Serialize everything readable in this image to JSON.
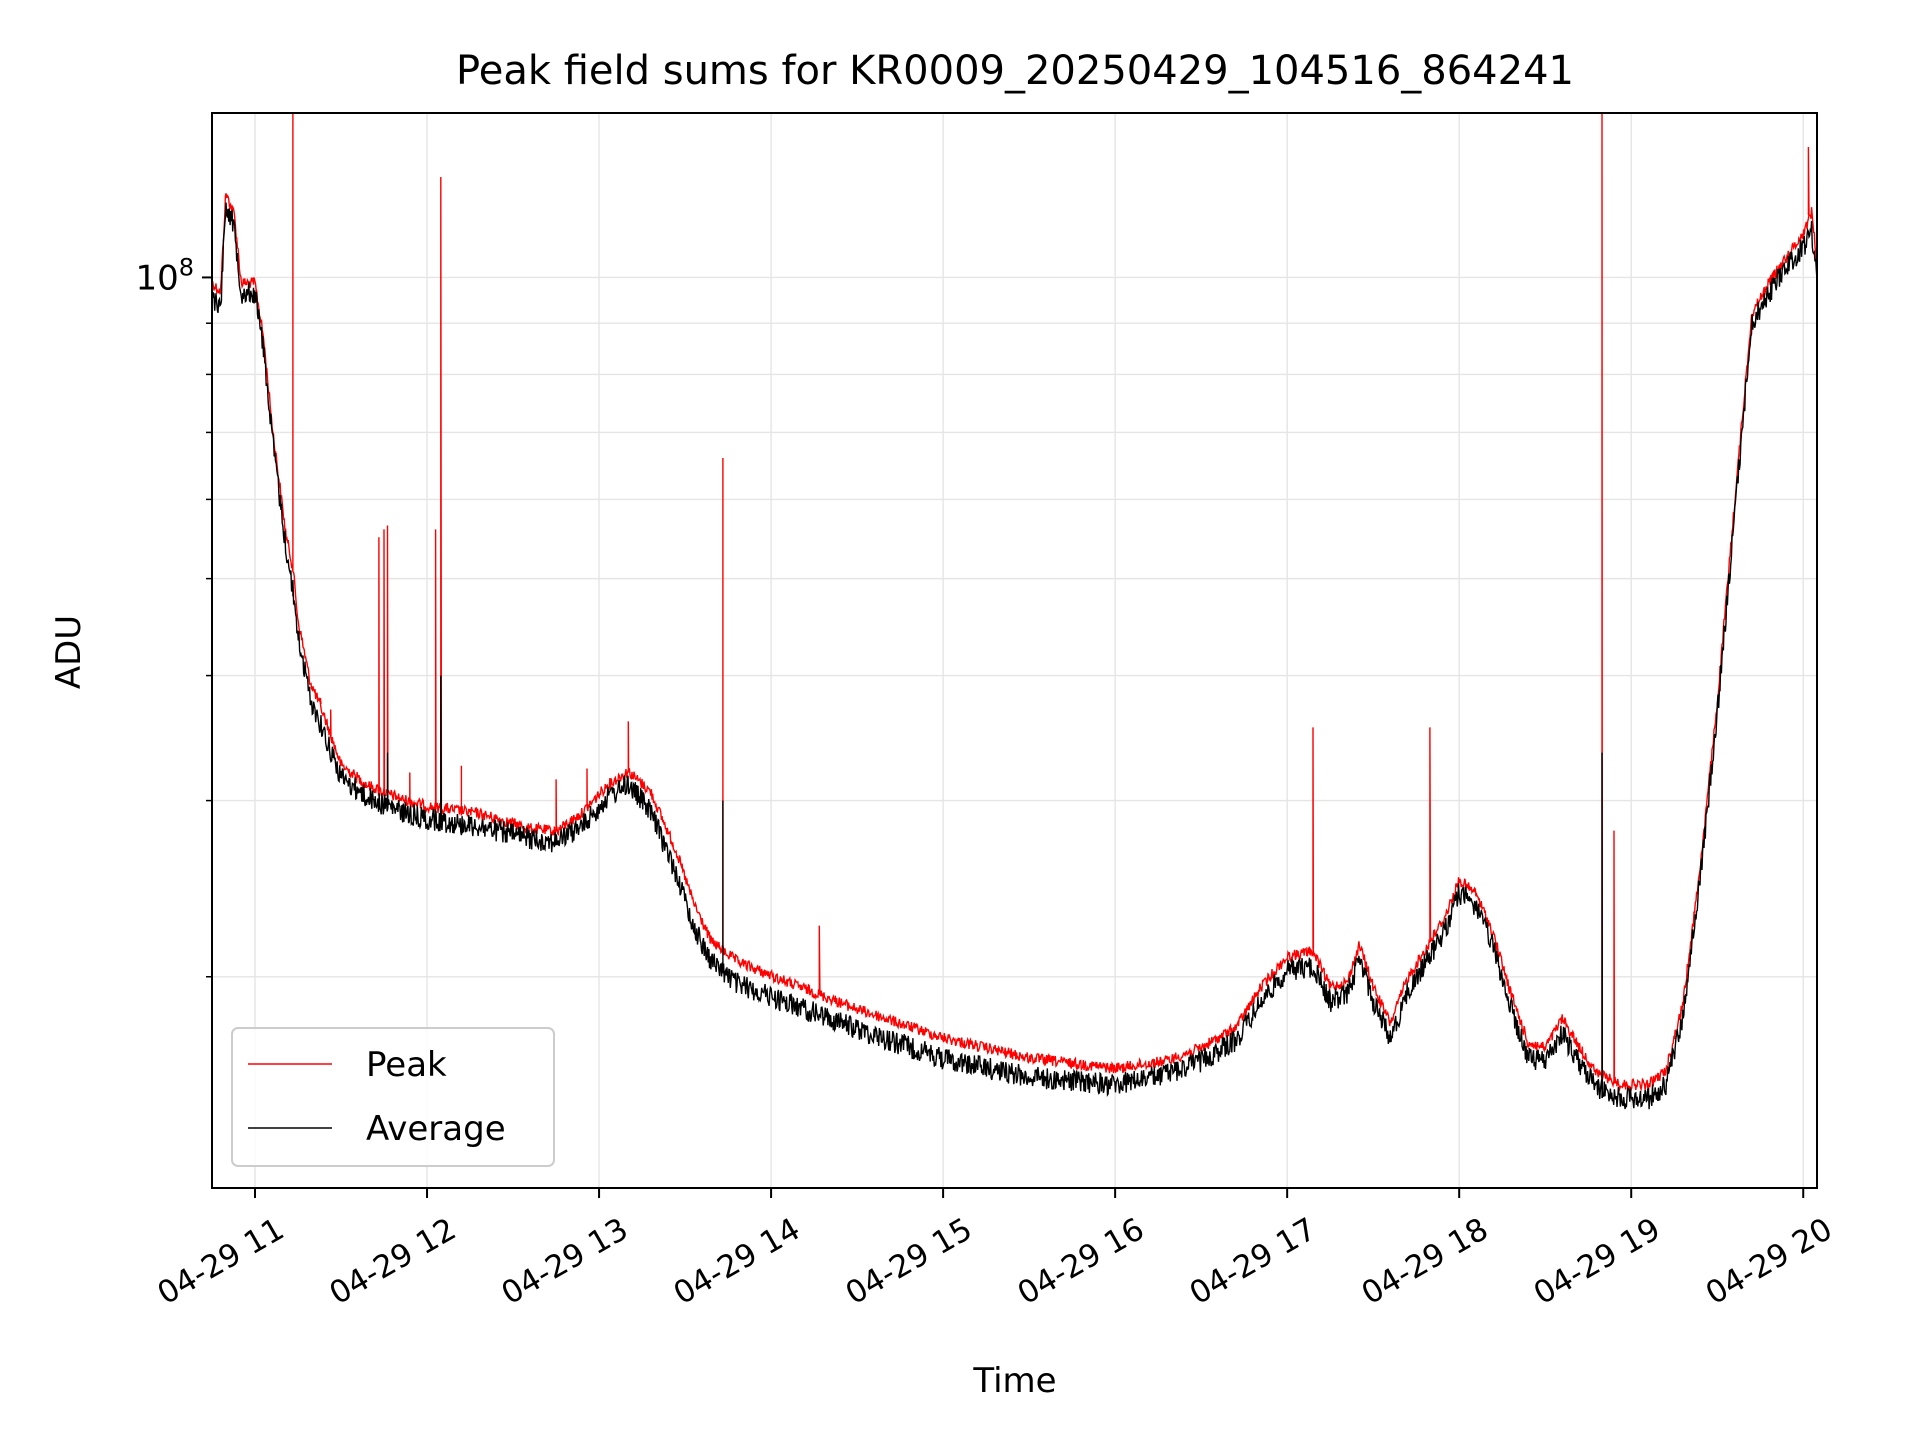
{
  "chart_data": {
    "type": "line",
    "title": "Peak field sums for KR0009_20250429_104516_864241",
    "xlabel": "Time",
    "ylabel": "ADU",
    "yscale": "log",
    "ylim": [
      12300000,
      146000000
    ],
    "xlim": [
      10.75,
      20.08
    ],
    "grid": true,
    "legend": "lower-left",
    "x_tick_labels": [
      "04-29 11",
      "04-29 12",
      "04-29 13",
      "04-29 14",
      "04-29 15",
      "04-29 16",
      "04-29 17",
      "04-29 18",
      "04-29 19",
      "04-29 20"
    ],
    "x_tick_hours": [
      11,
      12,
      13,
      14,
      15,
      16,
      17,
      18,
      19,
      20
    ],
    "y_major_ticks": [
      {
        "value": 100000000,
        "base": "10",
        "exp": "8"
      }
    ],
    "y_minor_ticks": [
      20000000,
      30000000,
      40000000,
      50000000,
      60000000,
      70000000,
      80000000,
      90000000,
      200000000
    ],
    "series": [
      {
        "name": "Peak",
        "color": "#ff0000",
        "points": [
          [
            10.75,
            100000000
          ],
          [
            10.8,
            98000000
          ],
          [
            10.83,
            123000000
          ],
          [
            10.88,
            117000000
          ],
          [
            10.92,
            100000000
          ],
          [
            11.0,
            100000000
          ],
          [
            11.05,
            88000000
          ],
          [
            11.1,
            72000000
          ],
          [
            11.18,
            56000000
          ],
          [
            11.22,
            52000000
          ],
          [
            11.25,
            46000000
          ],
          [
            11.32,
            40000000
          ],
          [
            11.4,
            37000000
          ],
          [
            11.5,
            33000000
          ],
          [
            11.65,
            31500000
          ],
          [
            11.85,
            30500000
          ],
          [
            12.0,
            30000000
          ],
          [
            12.3,
            29500000
          ],
          [
            12.6,
            28500000
          ],
          [
            12.75,
            28300000
          ],
          [
            12.9,
            29500000
          ],
          [
            13.05,
            31500000
          ],
          [
            13.17,
            32500000
          ],
          [
            13.3,
            31000000
          ],
          [
            13.45,
            27000000
          ],
          [
            13.55,
            24000000
          ],
          [
            13.65,
            22000000
          ],
          [
            13.8,
            21000000
          ],
          [
            14.0,
            20300000
          ],
          [
            14.5,
            18800000
          ],
          [
            15.0,
            17600000
          ],
          [
            15.5,
            16800000
          ],
          [
            16.0,
            16400000
          ],
          [
            16.3,
            16700000
          ],
          [
            16.5,
            17200000
          ],
          [
            16.7,
            18000000
          ],
          [
            16.85,
            19800000
          ],
          [
            17.0,
            21200000
          ],
          [
            17.15,
            21500000
          ],
          [
            17.25,
            19800000
          ],
          [
            17.35,
            20000000
          ],
          [
            17.42,
            21800000
          ],
          [
            17.5,
            19800000
          ],
          [
            17.6,
            18200000
          ],
          [
            17.7,
            20200000
          ],
          [
            17.8,
            21500000
          ],
          [
            17.92,
            23300000
          ],
          [
            18.0,
            25300000
          ],
          [
            18.1,
            24500000
          ],
          [
            18.2,
            22300000
          ],
          [
            18.3,
            19500000
          ],
          [
            18.4,
            17400000
          ],
          [
            18.5,
            17200000
          ],
          [
            18.6,
            18400000
          ],
          [
            18.7,
            17200000
          ],
          [
            18.8,
            16200000
          ],
          [
            18.95,
            15800000
          ],
          [
            19.1,
            15800000
          ],
          [
            19.2,
            16300000
          ],
          [
            19.3,
            19000000
          ],
          [
            19.4,
            26000000
          ],
          [
            19.5,
            38000000
          ],
          [
            19.6,
            60000000
          ],
          [
            19.7,
            93000000
          ],
          [
            19.8,
            100000000
          ],
          [
            19.9,
            106000000
          ],
          [
            20.0,
            112000000
          ],
          [
            20.05,
            118000000
          ],
          [
            20.08,
            104000000
          ]
        ],
        "spikes": [
          [
            11.22,
            160000000
          ],
          [
            11.38,
            38000000
          ],
          [
            11.44,
            37000000
          ],
          [
            11.5,
            32500000
          ],
          [
            11.72,
            55000000
          ],
          [
            11.75,
            56000000
          ],
          [
            11.77,
            56500000
          ],
          [
            11.9,
            32000000
          ],
          [
            12.05,
            56000000
          ],
          [
            12.08,
            126000000
          ],
          [
            12.2,
            32500000
          ],
          [
            12.75,
            31500000
          ],
          [
            12.93,
            32300000
          ],
          [
            13.17,
            36000000
          ],
          [
            13.72,
            66000000
          ],
          [
            14.28,
            22500000
          ],
          [
            17.15,
            35500000
          ],
          [
            17.83,
            35500000
          ],
          [
            18.83,
            160000000
          ],
          [
            18.9,
            28000000
          ],
          [
            20.03,
            135000000
          ]
        ]
      },
      {
        "name": "Average",
        "color": "#000000",
        "points": [
          [
            10.75,
            98000000
          ],
          [
            10.8,
            96000000
          ],
          [
            10.83,
            122000000
          ],
          [
            10.88,
            115000000
          ],
          [
            10.92,
            99000000
          ],
          [
            11.0,
            99000000
          ],
          [
            11.05,
            87000000
          ],
          [
            11.1,
            71000000
          ],
          [
            11.18,
            55000000
          ],
          [
            11.22,
            50000000
          ],
          [
            11.25,
            45000000
          ],
          [
            11.32,
            39000000
          ],
          [
            11.4,
            36000000
          ],
          [
            11.5,
            32500000
          ],
          [
            11.65,
            31000000
          ],
          [
            11.85,
            30000000
          ],
          [
            12.0,
            29500000
          ],
          [
            12.3,
            29000000
          ],
          [
            12.6,
            28200000
          ],
          [
            12.75,
            28000000
          ],
          [
            12.9,
            29000000
          ],
          [
            13.05,
            31000000
          ],
          [
            13.17,
            32000000
          ],
          [
            13.3,
            30000000
          ],
          [
            13.45,
            26000000
          ],
          [
            13.55,
            23000000
          ],
          [
            13.65,
            21300000
          ],
          [
            13.8,
            20200000
          ],
          [
            14.0,
            19600000
          ],
          [
            14.5,
            18200000
          ],
          [
            15.0,
            17000000
          ],
          [
            15.5,
            16300000
          ],
          [
            16.0,
            16000000
          ],
          [
            16.3,
            16400000
          ],
          [
            16.5,
            16900000
          ],
          [
            16.7,
            17700000
          ],
          [
            16.85,
            19400000
          ],
          [
            17.0,
            20800000
          ],
          [
            17.15,
            21000000
          ],
          [
            17.25,
            19400000
          ],
          [
            17.35,
            19700000
          ],
          [
            17.42,
            21400000
          ],
          [
            17.5,
            19400000
          ],
          [
            17.6,
            17800000
          ],
          [
            17.7,
            19800000
          ],
          [
            17.8,
            21100000
          ],
          [
            17.92,
            22900000
          ],
          [
            18.0,
            24900000
          ],
          [
            18.1,
            24100000
          ],
          [
            18.2,
            21900000
          ],
          [
            18.3,
            19100000
          ],
          [
            18.4,
            17000000
          ],
          [
            18.5,
            16900000
          ],
          [
            18.6,
            18000000
          ],
          [
            18.7,
            16800000
          ],
          [
            18.8,
            15900000
          ],
          [
            18.95,
            15500000
          ],
          [
            19.1,
            15500000
          ],
          [
            19.2,
            16000000
          ],
          [
            19.3,
            18700000
          ],
          [
            19.4,
            25600000
          ],
          [
            19.5,
            37500000
          ],
          [
            19.6,
            59000000
          ],
          [
            19.7,
            92000000
          ],
          [
            19.8,
            99000000
          ],
          [
            19.9,
            105000000
          ],
          [
            20.0,
            110000000
          ],
          [
            20.05,
            114000000
          ],
          [
            20.08,
            102000000
          ]
        ],
        "spikes": [
          [
            11.22,
            48000000
          ],
          [
            11.77,
            33500000
          ],
          [
            12.08,
            40000000
          ],
          [
            13.72,
            30000000
          ],
          [
            18.83,
            33500000
          ]
        ]
      }
    ]
  }
}
